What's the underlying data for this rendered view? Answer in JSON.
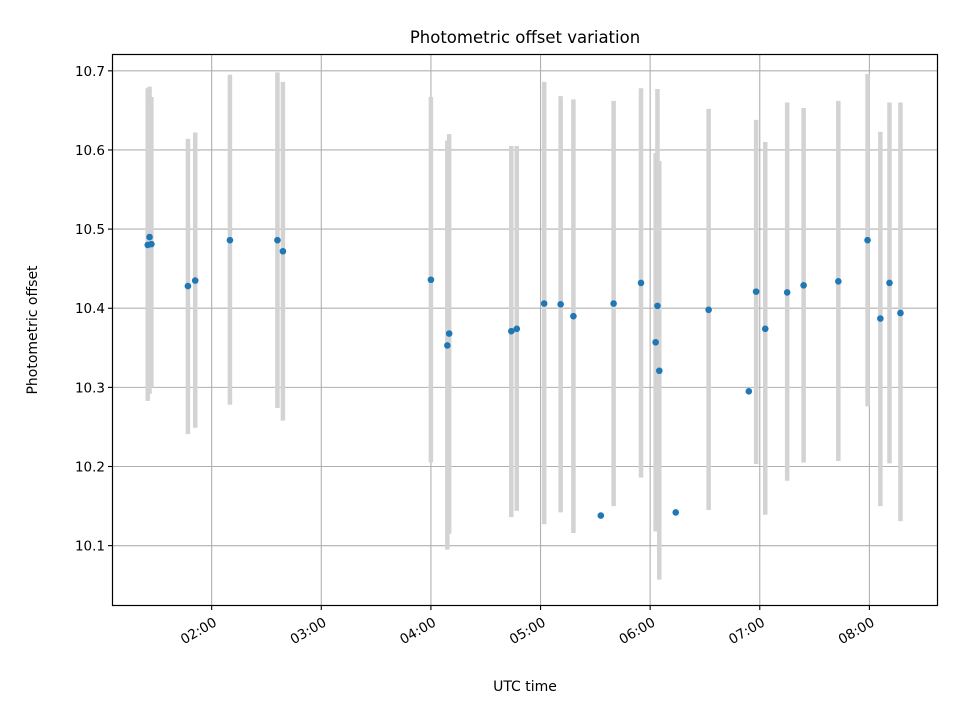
{
  "chart_data": {
    "type": "scatter",
    "title": "Photometric offset variation",
    "xlabel": "UTC time",
    "ylabel": "Photometric offset",
    "x_type": "time",
    "xlim": [
      "01:06",
      "08:37"
    ],
    "ylim": [
      10.025,
      10.72
    ],
    "x_ticks": [
      "02:00",
      "03:00",
      "04:00",
      "05:00",
      "06:00",
      "07:00",
      "08:00"
    ],
    "y_ticks": [
      "10.1",
      "10.2",
      "10.3",
      "10.4",
      "10.5",
      "10.6",
      "10.7"
    ],
    "grid": true,
    "colors": {
      "marker": "#1f77b4",
      "errorbar": "#d3d3d3",
      "grid": "#b0b0b0"
    },
    "points": [
      {
        "t": "01:25",
        "y": 10.48,
        "ylo": 10.283,
        "yhi": 10.678
      },
      {
        "t": "01:26",
        "y": 10.49,
        "ylo": 10.292,
        "yhi": 10.68
      },
      {
        "t": "01:27",
        "y": 10.481,
        "ylo": 10.3,
        "yhi": 10.667
      },
      {
        "t": "01:47",
        "y": 10.428,
        "ylo": 10.241,
        "yhi": 10.614
      },
      {
        "t": "01:51",
        "y": 10.435,
        "ylo": 10.249,
        "yhi": 10.622
      },
      {
        "t": "02:10",
        "y": 10.486,
        "ylo": 10.278,
        "yhi": 10.695
      },
      {
        "t": "02:36",
        "y": 10.486,
        "ylo": 10.274,
        "yhi": 10.698
      },
      {
        "t": "02:39",
        "y": 10.472,
        "ylo": 10.258,
        "yhi": 10.686
      },
      {
        "t": "04:00",
        "y": 10.436,
        "ylo": 10.205,
        "yhi": 10.667
      },
      {
        "t": "04:09",
        "y": 10.353,
        "ylo": 10.095,
        "yhi": 10.612
      },
      {
        "t": "04:10",
        "y": 10.368,
        "ylo": 10.115,
        "yhi": 10.62
      },
      {
        "t": "04:44",
        "y": 10.371,
        "ylo": 10.136,
        "yhi": 10.605
      },
      {
        "t": "04:47",
        "y": 10.374,
        "ylo": 10.144,
        "yhi": 10.605
      },
      {
        "t": "05:02",
        "y": 10.406,
        "ylo": 10.127,
        "yhi": 10.686
      },
      {
        "t": "05:11",
        "y": 10.405,
        "ylo": 10.142,
        "yhi": 10.668
      },
      {
        "t": "05:18",
        "y": 10.39,
        "ylo": 10.116,
        "yhi": 10.664
      },
      {
        "t": "05:33",
        "y": 10.138
      },
      {
        "t": "05:40",
        "y": 10.406,
        "ylo": 10.15,
        "yhi": 10.662
      },
      {
        "t": "05:55",
        "y": 10.432,
        "ylo": 10.186,
        "yhi": 10.678
      },
      {
        "t": "06:03",
        "y": 10.357,
        "ylo": 10.118,
        "yhi": 10.596
      },
      {
        "t": "06:04",
        "y": 10.403,
        "ylo": 10.13,
        "yhi": 10.677
      },
      {
        "t": "06:05",
        "y": 10.321,
        "ylo": 10.057,
        "yhi": 10.586
      },
      {
        "t": "06:14",
        "y": 10.142
      },
      {
        "t": "06:32",
        "y": 10.398,
        "ylo": 10.145,
        "yhi": 10.652
      },
      {
        "t": "06:54",
        "y": 10.295
      },
      {
        "t": "06:58",
        "y": 10.421,
        "ylo": 10.203,
        "yhi": 10.638
      },
      {
        "t": "07:03",
        "y": 10.374,
        "ylo": 10.139,
        "yhi": 10.61
      },
      {
        "t": "07:15",
        "y": 10.42,
        "ylo": 10.182,
        "yhi": 10.66
      },
      {
        "t": "07:24",
        "y": 10.429,
        "ylo": 10.205,
        "yhi": 10.653
      },
      {
        "t": "07:43",
        "y": 10.434,
        "ylo": 10.207,
        "yhi": 10.662
      },
      {
        "t": "07:59",
        "y": 10.486,
        "ylo": 10.276,
        "yhi": 10.696
      },
      {
        "t": "08:06",
        "y": 10.387,
        "ylo": 10.15,
        "yhi": 10.623
      },
      {
        "t": "08:11",
        "y": 10.432,
        "ylo": 10.204,
        "yhi": 10.66
      },
      {
        "t": "08:17",
        "y": 10.394,
        "ylo": 10.131,
        "yhi": 10.66
      }
    ]
  }
}
